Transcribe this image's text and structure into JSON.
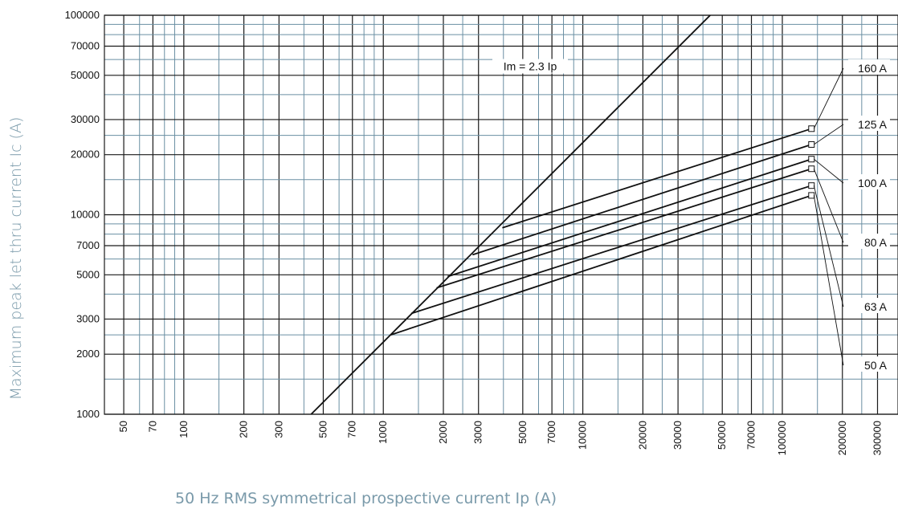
{
  "chart_data": {
    "type": "line",
    "xlabel": "50 Hz RMS symmetrical prospective current Ip (A)",
    "ylabel": "Maximum peak let thru current Ic (A)",
    "x_scale": "log",
    "y_scale": "log",
    "xlim": [
      40,
      380000
    ],
    "ylim": [
      1000,
      100000
    ],
    "x_ticks": [
      "50",
      "70",
      "100",
      "200",
      "300",
      "500",
      "700",
      "1000",
      "2000",
      "3000",
      "5000",
      "7000",
      "10000",
      "20000",
      "30000",
      "50000",
      "70000",
      "100000",
      "200000",
      "300000"
    ],
    "y_ticks": [
      "1000",
      "2000",
      "3000",
      "5000",
      "7000",
      "10000",
      "20000",
      "30000",
      "50000",
      "70000",
      "100000"
    ],
    "grid": true,
    "reference_line": {
      "label": "Im = 2.3 Ip",
      "factor": 2.3,
      "x_range": [
        435,
        43500
      ]
    },
    "series": [
      {
        "name": "160 A",
        "x": [
          3950,
          140000
        ],
        "y": [
          8600,
          27000
        ]
      },
      {
        "name": "125 A",
        "x": [
          2800,
          140000
        ],
        "y": [
          6300,
          22500
        ]
      },
      {
        "name": "100 A",
        "x": [
          2100,
          140000
        ],
        "y": [
          4900,
          19000
        ]
      },
      {
        "name": "80 A",
        "x": [
          1850,
          140000
        ],
        "y": [
          4300,
          17000
        ]
      },
      {
        "name": "63 A",
        "x": [
          1380,
          140000
        ],
        "y": [
          3200,
          14000
        ]
      },
      {
        "name": "50 A",
        "x": [
          1090,
          140000
        ],
        "y": [
          2500,
          12500
        ]
      }
    ]
  }
}
